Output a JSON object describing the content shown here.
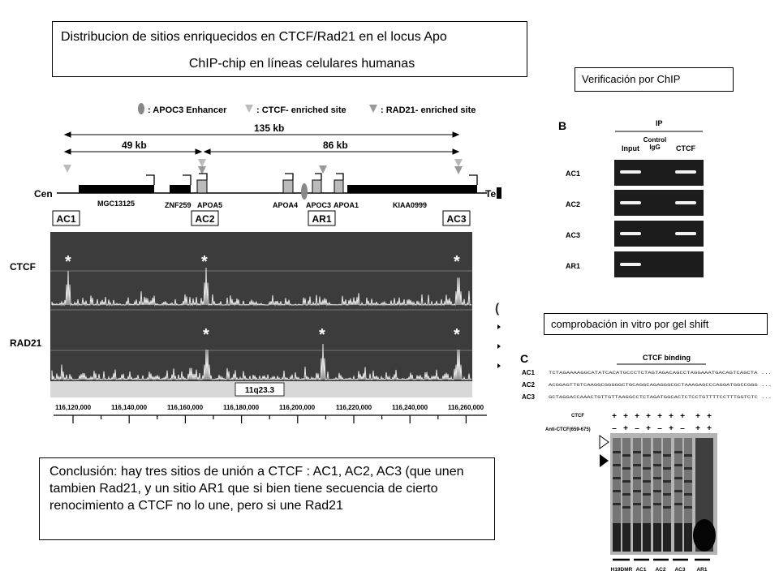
{
  "title": {
    "line1": "Distribucion de sitios enriquecidos en CTCF/Rad21 en el locus Apo",
    "line2": "ChIP-chip en líneas celulares humanas"
  },
  "verification_label": "Verificación por ChIP",
  "gelshift_label": "comprobación in vitro por gel shift",
  "conclusion": "Conclusión: hay tres sitios de unión a CTCF : AC1, AC2, AC3 (que unen tambien Rad21, y un sitio AR1 que si bien tiene secuencia de  cierto renocimiento a CTCF no lo une, pero si une Rad21",
  "panel_a": {
    "legend": {
      "enhancer": ": APOC3 Enhancer",
      "ctcf": ": CTCF- enriched site",
      "rad21": ": RAD21- enriched site"
    },
    "span_total": "135 kb",
    "span_left": "49 kb",
    "span_right": "86 kb",
    "cen": "Cen",
    "tel": "Tel",
    "genes": [
      "MGC13125",
      "ZNF259",
      "APOA5",
      "APOA4",
      "APOC3",
      "APOA1",
      "KIAA0999"
    ],
    "sites": [
      "AC1",
      "AC2",
      "AR1",
      "AC3"
    ],
    "tracks": [
      "CTCF",
      "RAD21"
    ],
    "star": "*",
    "band": "11q23.3",
    "coords": [
      "116,120,000",
      "116,140,000",
      "116,160,000",
      "116,180,000",
      "116,200,000",
      "116,220,000",
      "116,240,000",
      "116,260,000"
    ]
  },
  "panel_b": {
    "letter": "B",
    "ip": "IP",
    "cols": [
      "Input",
      "Control IgG",
      "CTCF"
    ],
    "rows": [
      "AC1",
      "AC2",
      "AC3",
      "AR1"
    ]
  },
  "panel_c": {
    "letter": "C",
    "heading": "CTCF binding",
    "rows": [
      {
        "label": "AC1",
        "seq": "TCTAGAAAAGGCATATCACATGCCCTCTAGTAGACAGCCTAGGAAATGACAGTCAGCTA ..."
      },
      {
        "label": "AC2",
        "seq": "ACGGAGTTGTCAAGGCGGGGGCTGCAGGCAGAGGGCGCTAAAGAGCCCAGGATGGCCGGG ..."
      },
      {
        "label": "AC3",
        "seq": "GCTAGGACCAAACTGTTGTTAAGGCCTCTAGATGGCACTCTCCTGTTTTCCTTTGGTCTC ..."
      }
    ],
    "ctcf_row_label": "CTCF",
    "ctcf_signs": [
      "+",
      "+",
      "+",
      "+",
      "+",
      "+",
      "+",
      "+",
      "+"
    ],
    "anti_row_label": "Anti-CTCF(659-675)",
    "anti_signs": [
      "–",
      "+",
      "–",
      "+",
      "–",
      "+",
      "–",
      "+",
      "+"
    ],
    "lanes": [
      "H19DMR",
      "AC1",
      "AC2",
      "AC3",
      "AR1"
    ]
  }
}
